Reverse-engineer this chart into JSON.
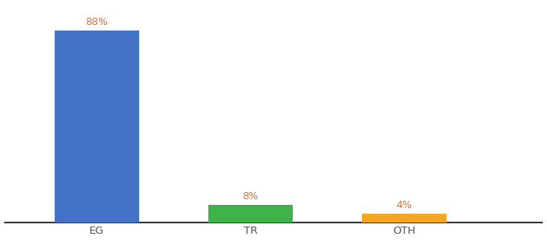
{
  "categories": [
    "EG",
    "TR",
    "OTH"
  ],
  "values": [
    88,
    8,
    4
  ],
  "bar_colors": [
    "#4472c4",
    "#3db34a",
    "#f5a623"
  ],
  "label_color": "#c0784a",
  "label_fontsize": 9,
  "tick_fontsize": 9.5,
  "tick_color": "#555555",
  "ylim": [
    0,
    100
  ],
  "background_color": "#ffffff",
  "bar_width": 0.55,
  "x_positions": [
    1,
    2,
    3
  ],
  "xlim": [
    0.4,
    3.9
  ]
}
